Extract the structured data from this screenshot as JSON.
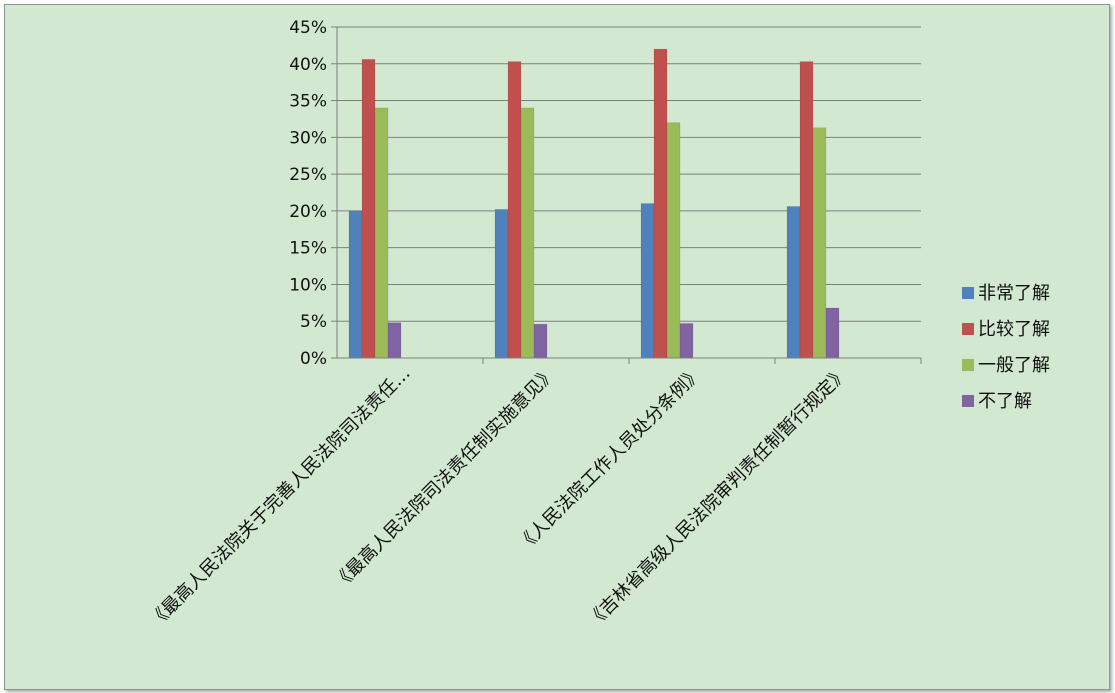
{
  "chart_data": {
    "type": "bar",
    "categories": [
      "《最高人民法院关于完善人民法院司法责任…",
      "《最高人民法院司法责任制实施意见》",
      "《人民法院工作人员处分条例》",
      "《吉林省高级人民法院审判责任制暂行规定》"
    ],
    "series": [
      {
        "name": "非常了解",
        "color": "#4f81bd",
        "values": [
          20.0,
          20.2,
          21.0,
          20.6
        ]
      },
      {
        "name": "比较了解",
        "color": "#c0504d",
        "values": [
          40.6,
          40.3,
          42.0,
          40.3
        ]
      },
      {
        "name": "一般了解",
        "color": "#9bbb59",
        "values": [
          34.0,
          34.0,
          32.0,
          31.3
        ]
      },
      {
        "name": "不了解",
        "color": "#8064a2",
        "values": [
          4.8,
          4.6,
          4.7,
          6.8
        ]
      }
    ],
    "ylim": [
      0,
      45
    ],
    "yticks": [
      "0%",
      "5%",
      "10%",
      "15%",
      "20%",
      "25%",
      "30%",
      "35%",
      "40%",
      "45%"
    ],
    "grid": true,
    "legend_position": "right",
    "background": "#d2e8d1"
  }
}
